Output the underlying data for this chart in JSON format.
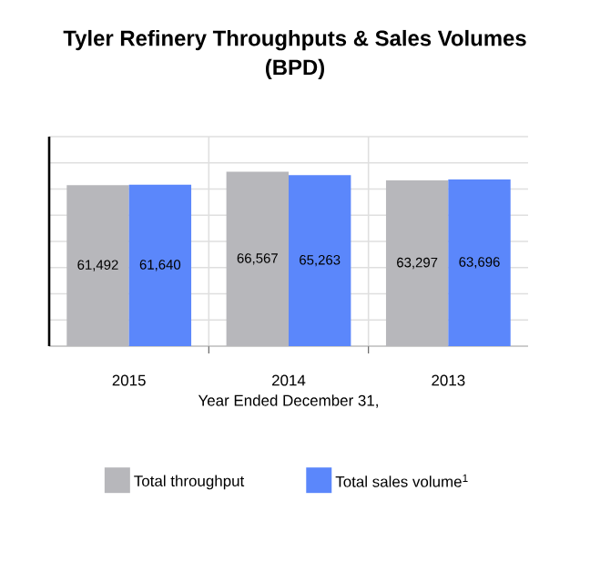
{
  "chart_data": {
    "type": "bar",
    "title": "Tyler Refinery Throughputs & Sales Volumes\n(BPD)",
    "xlabel": "Year Ended December 31,",
    "categories": [
      "2015",
      "2014",
      "2013"
    ],
    "series": [
      {
        "name": "Total throughput",
        "color": "#b7b7bb",
        "values": [
          61492,
          66567,
          63297
        ],
        "value_labels": [
          "61,492",
          "66,567",
          "63,297"
        ]
      },
      {
        "name": "Total sales volume$^{1}$",
        "color": "#5b87fb",
        "values": [
          61640,
          65263,
          63696
        ],
        "value_labels": [
          "61,640",
          "65,263",
          "63,696"
        ]
      }
    ],
    "ylim": [
      0,
      80000
    ],
    "yticks": [
      0,
      10000,
      20000,
      30000,
      40000,
      50000,
      60000,
      70000,
      80000
    ],
    "tick_labels": "x",
    "grid": true,
    "legend": "bottom"
  }
}
